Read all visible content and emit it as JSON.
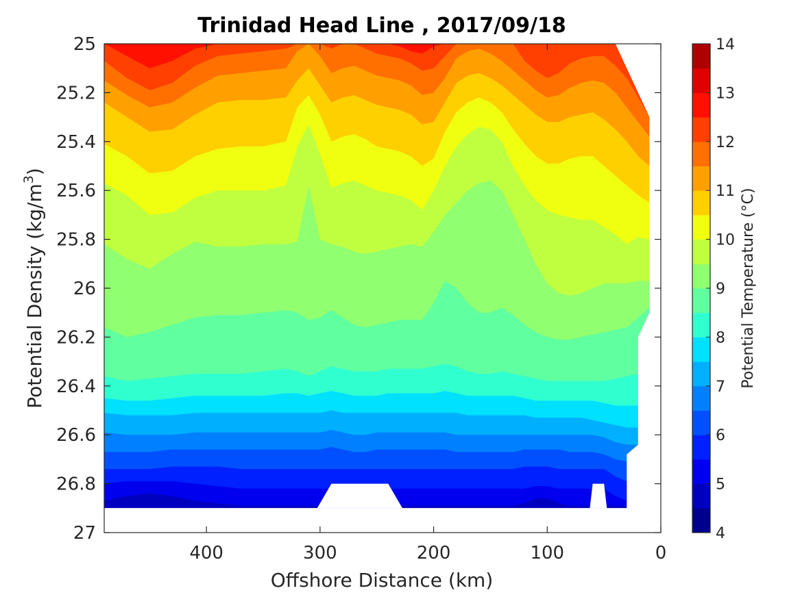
{
  "chart_data": {
    "type": "contour",
    "title": "Trinidad Head Line , 2017/09/18",
    "xlabel": "Offshore Distance (km)",
    "ylabel_main": "Potential Density (kg/m",
    "ylabel_sup": "3",
    "ylabel_tail": ")",
    "colorbar_label": "Potential Temperature (°C)",
    "x_axis": {
      "range": [
        490,
        0
      ],
      "reversed": true,
      "ticks": [
        400,
        300,
        200,
        100,
        0
      ]
    },
    "y_axis": {
      "range": [
        25,
        27
      ],
      "reversed": true,
      "ticks": [
        25,
        25.2,
        25.4,
        25.6,
        25.8,
        26,
        26.2,
        26.4,
        26.6,
        26.8,
        27
      ]
    },
    "y_tick_labels": [
      "25",
      "25.2",
      "25.4",
      "25.6",
      "25.8",
      "26",
      "26.2",
      "26.4",
      "26.6",
      "26.8",
      "27"
    ],
    "x_tick_labels": [
      "400",
      "300",
      "200",
      "100",
      "0"
    ],
    "colorbar": {
      "range": [
        4,
        14
      ],
      "ticks": [
        4,
        5,
        6,
        7,
        8,
        9,
        10,
        11,
        12,
        13,
        14
      ],
      "tick_labels": [
        "4",
        "5",
        "6",
        "7",
        "8",
        "9",
        "10",
        "11",
        "12",
        "13",
        "14"
      ],
      "level_step": 0.5
    },
    "colormap": [
      "#00008f",
      "#0000bf",
      "#0000ef",
      "#0020ff",
      "#0050ff",
      "#0080ff",
      "#00b0ff",
      "#00e0ff",
      "#30ffd0",
      "#60ffa0",
      "#90ff70",
      "#c0ff40",
      "#f0ff10",
      "#ffd000",
      "#ffa000",
      "#ff7000",
      "#ff4000",
      "#ff1000",
      "#df0000",
      "#af0000"
    ],
    "data_extent": {
      "x_max": 490,
      "x_min_top": 40,
      "x_min_at_25_3": 10,
      "bottom_density": 26.9,
      "bottom_gaps": [
        [
          290,
          240
        ],
        [
          60,
          50
        ]
      ],
      "gap_top_density": 26.8
    },
    "x_stations": [
      490,
      470,
      450,
      430,
      410,
      390,
      370,
      350,
      330,
      320,
      310,
      300,
      290,
      280,
      270,
      260,
      250,
      240,
      230,
      220,
      210,
      200,
      190,
      180,
      170,
      160,
      150,
      140,
      130,
      120,
      110,
      100,
      90,
      80,
      70,
      60,
      50,
      40,
      30,
      20,
      10
    ],
    "isotherms": [
      {
        "level": 12.5,
        "density": [
          25.0,
          25.05,
          25.1,
          25.07,
          25.02,
          25.0,
          25.0,
          25.0,
          25.0,
          25.0,
          25.0,
          25.0,
          25.0,
          25.0,
          25.0,
          25.0,
          25.0,
          25.0,
          25.01,
          25.03,
          25.04,
          25.01,
          25.0,
          25.0,
          25.0,
          25.0,
          25.0,
          25.0,
          25.0,
          25.0,
          25.0,
          25.0,
          25.0,
          25.0,
          25.0,
          25.0,
          25.0,
          25.0,
          25.0,
          25.0,
          25.0
        ]
      },
      {
        "level": 12.0,
        "density": [
          25.07,
          25.14,
          25.19,
          25.16,
          25.09,
          25.05,
          25.04,
          25.03,
          25.02,
          25.0,
          25.0,
          25.0,
          25.02,
          25.0,
          25.0,
          25.02,
          25.04,
          25.05,
          25.06,
          25.08,
          25.11,
          25.1,
          25.05,
          25.0,
          25.0,
          25.0,
          25.0,
          25.0,
          25.0,
          25.07,
          25.11,
          25.14,
          25.12,
          25.08,
          25.06,
          25.05,
          25.05,
          25.09,
          25.14,
          25.22,
          25.3
        ]
      },
      {
        "level": 11.5,
        "density": [
          25.15,
          25.21,
          25.26,
          25.24,
          25.18,
          25.13,
          25.12,
          25.11,
          25.1,
          25.03,
          25.0,
          25.05,
          25.12,
          25.1,
          25.09,
          25.11,
          25.13,
          25.14,
          25.15,
          25.17,
          25.21,
          25.2,
          25.14,
          25.06,
          25.03,
          25.02,
          25.04,
          25.07,
          25.11,
          25.15,
          25.19,
          25.22,
          25.21,
          25.18,
          25.16,
          25.15,
          25.16,
          25.2,
          25.26,
          25.32,
          25.38
        ]
      },
      {
        "level": 11.0,
        "density": [
          25.24,
          25.3,
          25.36,
          25.35,
          25.29,
          25.24,
          25.23,
          25.23,
          25.22,
          25.15,
          25.1,
          25.17,
          25.24,
          25.22,
          25.21,
          25.23,
          25.25,
          25.26,
          25.27,
          25.29,
          25.33,
          25.32,
          25.24,
          25.16,
          25.13,
          25.12,
          25.14,
          25.17,
          25.21,
          25.25,
          25.29,
          25.32,
          25.32,
          25.3,
          25.29,
          25.28,
          25.31,
          25.35,
          25.4,
          25.46,
          25.5
        ]
      },
      {
        "level": 10.5,
        "density": [
          25.41,
          25.46,
          25.53,
          25.52,
          25.46,
          25.43,
          25.42,
          25.42,
          25.4,
          25.26,
          25.21,
          25.29,
          25.4,
          25.38,
          25.37,
          25.39,
          25.42,
          25.43,
          25.44,
          25.46,
          25.5,
          25.47,
          25.36,
          25.28,
          25.24,
          25.22,
          25.24,
          25.28,
          25.35,
          25.41,
          25.46,
          25.49,
          25.49,
          25.47,
          25.46,
          25.46,
          25.5,
          25.54,
          25.58,
          25.62,
          25.65
        ]
      },
      {
        "level": 10.0,
        "density": [
          25.57,
          25.62,
          25.7,
          25.69,
          25.63,
          25.6,
          25.6,
          25.6,
          25.58,
          25.42,
          25.33,
          25.45,
          25.59,
          25.57,
          25.56,
          25.58,
          25.6,
          25.61,
          25.62,
          25.64,
          25.68,
          25.6,
          25.5,
          25.42,
          25.37,
          25.34,
          25.35,
          25.4,
          25.5,
          25.58,
          25.64,
          25.68,
          25.7,
          25.71,
          25.72,
          25.72,
          25.75,
          25.78,
          25.82,
          25.79,
          25.8
        ]
      },
      {
        "level": 9.5,
        "density": [
          25.82,
          25.88,
          25.92,
          25.86,
          25.81,
          25.83,
          25.83,
          25.82,
          25.82,
          25.81,
          25.58,
          25.8,
          25.82,
          25.83,
          25.85,
          25.86,
          25.85,
          25.84,
          25.83,
          25.82,
          25.83,
          25.77,
          25.7,
          25.65,
          25.6,
          25.57,
          25.56,
          25.6,
          25.7,
          25.8,
          25.9,
          25.98,
          26.02,
          26.03,
          26.02,
          26.0,
          25.98,
          25.98,
          25.98,
          25.97,
          25.97
        ]
      },
      {
        "level": 9.0,
        "density": [
          26.16,
          26.2,
          26.18,
          26.15,
          26.12,
          26.11,
          26.11,
          26.1,
          26.09,
          26.1,
          26.13,
          26.12,
          26.09,
          26.12,
          26.15,
          26.16,
          26.15,
          26.14,
          26.13,
          26.13,
          26.13,
          26.06,
          25.97,
          26.0,
          26.06,
          26.1,
          26.1,
          26.08,
          26.11,
          26.15,
          26.18,
          26.2,
          26.21,
          26.21,
          26.2,
          26.19,
          26.18,
          26.17,
          26.16,
          26.12,
          26.08
        ]
      },
      {
        "level": 8.5,
        "density": [
          26.36,
          26.38,
          26.37,
          26.36,
          26.35,
          26.35,
          26.35,
          26.34,
          26.33,
          26.34,
          26.36,
          26.34,
          26.32,
          26.33,
          26.34,
          26.34,
          26.34,
          26.33,
          26.33,
          26.33,
          26.33,
          26.32,
          26.31,
          26.32,
          26.34,
          26.35,
          26.35,
          26.34,
          26.35,
          26.36,
          26.37,
          26.38,
          26.38,
          26.38,
          26.38,
          26.38,
          26.38,
          26.37,
          26.36,
          26.35,
          26.35
        ]
      },
      {
        "level": 8.0,
        "density": [
          26.45,
          26.46,
          26.46,
          26.45,
          26.44,
          26.44,
          26.44,
          26.44,
          26.43,
          26.43,
          26.44,
          26.43,
          26.42,
          26.43,
          26.44,
          26.44,
          26.44,
          26.43,
          26.43,
          26.43,
          26.43,
          26.43,
          26.42,
          26.43,
          26.44,
          26.44,
          26.44,
          26.44,
          26.44,
          26.45,
          26.46,
          26.46,
          26.46,
          26.46,
          26.46,
          26.46,
          26.47,
          26.48,
          26.48,
          26.48,
          26.48
        ]
      },
      {
        "level": 7.5,
        "density": [
          26.51,
          26.52,
          26.52,
          26.52,
          26.51,
          26.51,
          26.51,
          26.51,
          26.51,
          26.51,
          26.51,
          26.51,
          26.5,
          26.51,
          26.51,
          26.51,
          26.51,
          26.51,
          26.51,
          26.51,
          26.51,
          26.51,
          26.51,
          26.51,
          26.52,
          26.52,
          26.52,
          26.52,
          26.52,
          26.52,
          26.53,
          26.53,
          26.53,
          26.53,
          26.53,
          26.54,
          26.55,
          26.56,
          26.57,
          26.57,
          26.57
        ]
      },
      {
        "level": 7.0,
        "density": [
          26.59,
          26.6,
          26.6,
          26.6,
          26.59,
          26.59,
          26.59,
          26.59,
          26.59,
          26.59,
          26.59,
          26.59,
          26.58,
          26.59,
          26.6,
          26.6,
          26.59,
          26.59,
          26.59,
          26.59,
          26.59,
          26.59,
          26.59,
          26.6,
          26.6,
          26.6,
          26.6,
          26.6,
          26.6,
          26.6,
          26.6,
          26.6,
          26.6,
          26.6,
          26.6,
          26.6,
          26.61,
          26.63,
          26.64,
          26.64,
          26.64
        ]
      },
      {
        "level": 6.5,
        "density": [
          26.67,
          26.67,
          26.67,
          26.66,
          26.66,
          26.66,
          26.66,
          26.66,
          26.66,
          26.66,
          26.66,
          26.66,
          26.65,
          26.66,
          26.67,
          26.67,
          26.66,
          26.66,
          26.66,
          26.66,
          26.66,
          26.66,
          26.66,
          26.67,
          26.67,
          26.67,
          26.67,
          26.67,
          26.67,
          26.66,
          26.66,
          26.66,
          26.66,
          26.67,
          26.67,
          26.67,
          26.68,
          26.7,
          26.71,
          26.71,
          26.71
        ]
      },
      {
        "level": 6.0,
        "density": [
          26.74,
          26.74,
          26.74,
          26.73,
          26.73,
          26.73,
          26.74,
          26.74,
          26.74,
          26.74,
          26.74,
          26.74,
          26.74,
          26.74,
          26.74,
          26.74,
          26.74,
          26.74,
          26.74,
          26.74,
          26.74,
          26.74,
          26.74,
          26.74,
          26.74,
          26.74,
          26.74,
          26.74,
          26.74,
          26.73,
          26.73,
          26.73,
          26.74,
          26.74,
          26.74,
          26.74,
          26.74,
          26.77,
          26.79,
          26.79,
          26.79
        ]
      },
      {
        "level": 5.5,
        "density": [
          26.8,
          26.79,
          26.79,
          26.79,
          26.8,
          26.81,
          26.82,
          26.82,
          26.82,
          26.82,
          26.82,
          26.82,
          26.82,
          26.82,
          26.82,
          26.82,
          26.82,
          26.82,
          26.82,
          26.82,
          26.82,
          26.82,
          26.82,
          26.82,
          26.82,
          26.82,
          26.82,
          26.82,
          26.82,
          26.82,
          26.81,
          26.81,
          26.82,
          26.82,
          26.82,
          26.82,
          26.82,
          26.85,
          26.87,
          26.87,
          26.87
        ]
      },
      {
        "level": 5.0,
        "density": [
          26.87,
          26.85,
          26.84,
          26.85,
          26.87,
          26.88,
          26.89,
          26.89,
          26.89,
          26.89,
          26.89,
          26.89,
          26.89,
          26.89,
          26.89,
          26.89,
          26.89,
          26.89,
          26.89,
          26.89,
          26.89,
          26.89,
          26.89,
          26.89,
          26.89,
          26.89,
          26.89,
          26.89,
          26.89,
          26.88,
          26.86,
          26.86,
          26.88,
          26.89,
          26.89,
          26.89,
          26.89,
          26.89,
          26.89,
          26.89,
          26.89
        ]
      }
    ]
  }
}
